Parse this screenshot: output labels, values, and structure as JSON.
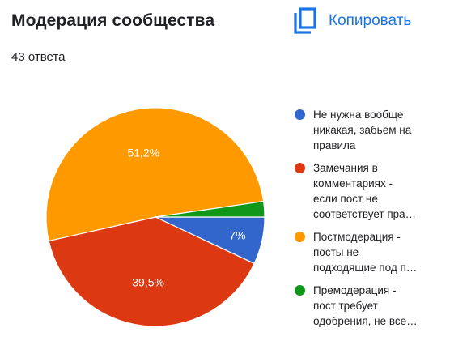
{
  "header": {
    "title": "Модерация сообщества",
    "response_count": "43 ответа",
    "copy_label": "Копировать",
    "copy_icon": "copy-icon",
    "accent_color": "#1a73e8"
  },
  "chart_data": {
    "type": "pie",
    "title": "Модерация сообщества",
    "series": [
      {
        "name": "Не нужна вообще никакая, забьем на правила",
        "legend_text": "Не нужна вообще\nникакая, забьем на\nправила",
        "value": 7.0,
        "label": "7%",
        "color": "#3366cc"
      },
      {
        "name": "Замечания в комментариях - если пост не соответствует пра…",
        "legend_text": "Замечания в\nкомментариях -\nесли пост не\nсоответствует пра…",
        "value": 39.5,
        "label": "39,5%",
        "color": "#dc3912"
      },
      {
        "name": "Постмодерация - посты не подходящие под п…",
        "legend_text": "Постмодерация -\nпосты не\nподходящие под п…",
        "value": 51.2,
        "label": "51,2%",
        "color": "#ff9900"
      },
      {
        "name": "Премодерация - пост требует одобрения, не все…",
        "legend_text": "Премодерация -\nпост требует\nодобрения, не все…",
        "value": 2.3,
        "label": "",
        "color": "#109618"
      }
    ],
    "legend_position": "right"
  }
}
